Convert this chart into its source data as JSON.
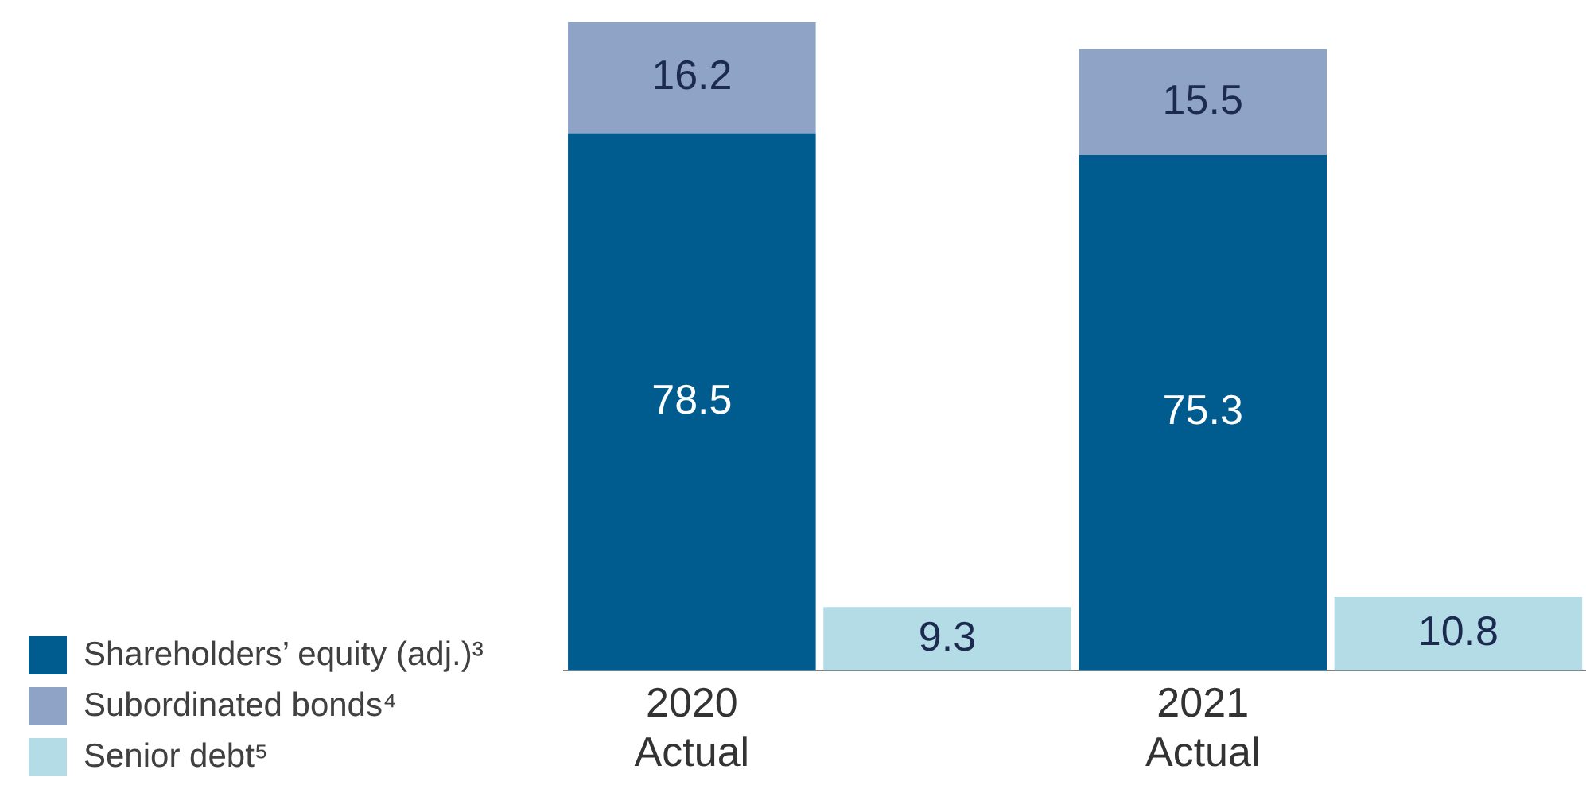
{
  "chart_data": {
    "type": "bar",
    "stacked": true,
    "data_labels": true,
    "legend": "left",
    "grid": false,
    "categories": [
      "2020\nActual",
      null,
      "2021\nActual",
      null
    ],
    "series": [
      {
        "name": "Shareholders’ equity (adj.)³",
        "color": "#005b8f",
        "values": [
          78.5,
          null,
          75.3,
          null
        ]
      },
      {
        "name": "Subordinated bonds⁴",
        "color": "#8ea3c6",
        "values": [
          16.2,
          null,
          15.5,
          null
        ]
      },
      {
        "name": "Senior debt⁵",
        "color": "#b4dce6",
        "values": [
          null,
          9.3,
          null,
          10.8
        ]
      }
    ]
  }
}
